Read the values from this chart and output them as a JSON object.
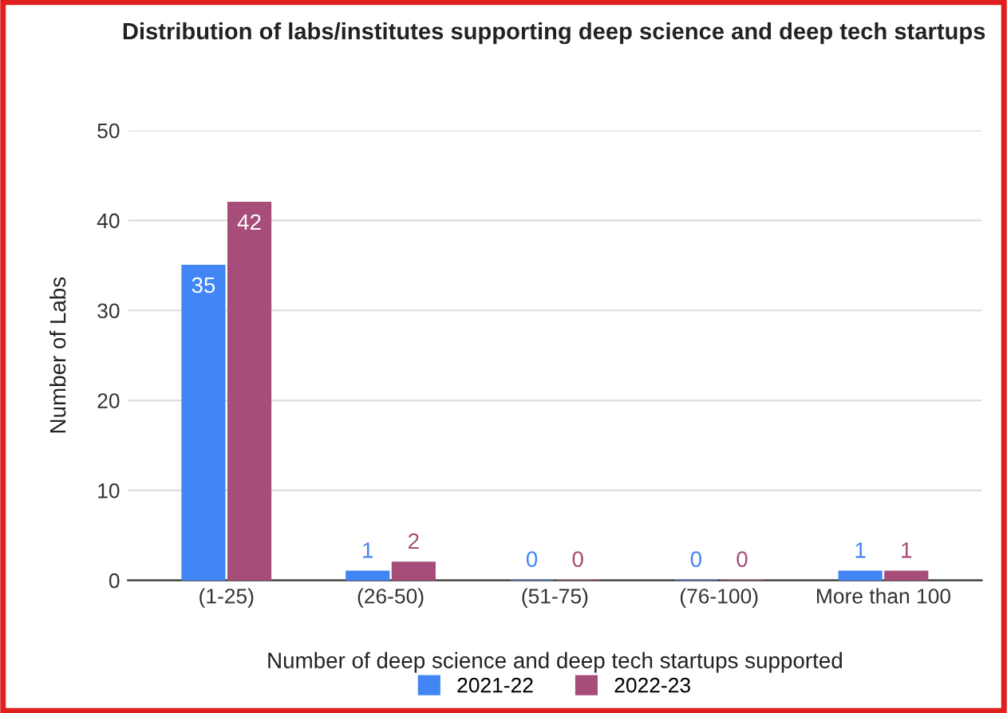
{
  "chart_data": {
    "type": "bar",
    "title": "Distribution of labs/institutes supporting deep science and deep tech startups",
    "xlabel": "Number of deep science and deep tech startups supported",
    "ylabel": "Number of Labs",
    "categories": [
      "(1-25)",
      "(26-50)",
      "(51-75)",
      "(76-100)",
      "More than 100"
    ],
    "series": [
      {
        "name": "2021-22",
        "color": "#4285f4",
        "values": [
          35,
          1,
          0,
          0,
          1
        ]
      },
      {
        "name": "2022-23",
        "color": "#a64d79",
        "values": [
          42,
          2,
          0,
          0,
          1
        ]
      }
    ],
    "ylim": [
      0,
      50
    ],
    "yticks": [
      0,
      10,
      20,
      30,
      40,
      50
    ],
    "grid": "y",
    "legend": "bottom",
    "data_labels": true
  }
}
